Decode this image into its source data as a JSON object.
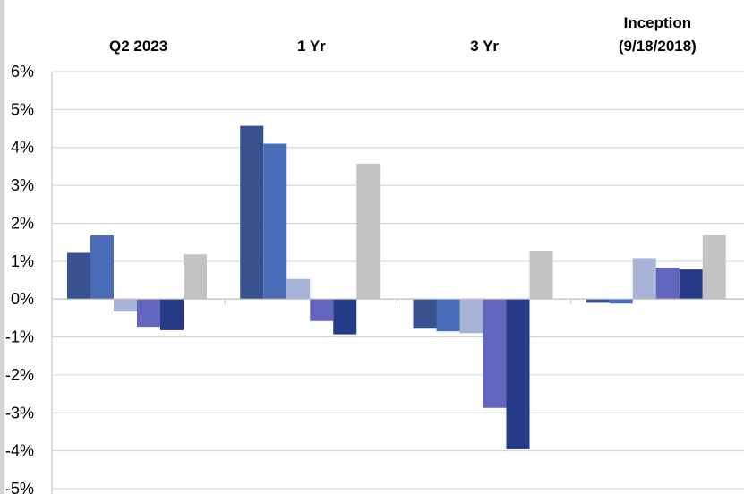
{
  "chart_data": {
    "type": "bar",
    "title": "",
    "xlabel": "",
    "ylabel": "",
    "categories": [
      [
        "Q2 2023"
      ],
      [
        "1 Yr"
      ],
      [
        "3 Yr"
      ],
      [
        "Inception",
        "(9/18/2018)"
      ]
    ],
    "series": [
      {
        "color": "#3a5190",
        "values": [
          1.22,
          4.57,
          -0.78,
          -0.1
        ]
      },
      {
        "color": "#4a6cb8",
        "values": [
          1.68,
          4.1,
          -0.85,
          -0.12
        ]
      },
      {
        "color": "#a8b2d6",
        "values": [
          -0.33,
          0.53,
          -0.9,
          1.08
        ]
      },
      {
        "color": "#6366be",
        "values": [
          -0.73,
          -0.58,
          -2.87,
          0.83
        ]
      },
      {
        "color": "#253b88",
        "values": [
          -0.82,
          -0.93,
          -3.96,
          0.78
        ]
      },
      {
        "color": "#c3c3c3",
        "values": [
          1.18,
          3.57,
          1.28,
          1.68
        ]
      }
    ],
    "ylim": [
      -5,
      6
    ],
    "yticks": [
      6,
      5,
      4,
      3,
      2,
      1,
      0,
      -1,
      -2,
      -3,
      -4,
      -5
    ],
    "ytick_labels": [
      "6%",
      "5%",
      "4%",
      "3%",
      "2%",
      "1%",
      "0%",
      "-1%",
      "-2%",
      "-3%",
      "-4%",
      "-5%"
    ],
    "grid": true,
    "legend": "none"
  }
}
